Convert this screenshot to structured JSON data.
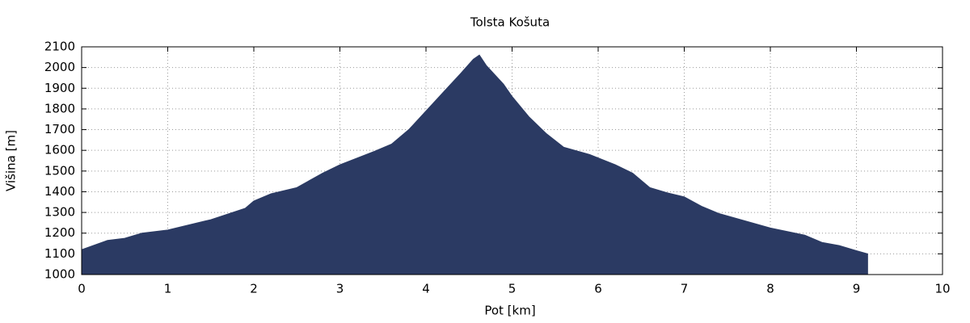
{
  "chart_data": {
    "type": "area",
    "title": "Tolsta Košuta",
    "xlabel": "Pot [km]",
    "ylabel": "Višina [m]",
    "x": [
      0,
      0.3,
      0.5,
      0.7,
      1.0,
      1.5,
      1.9,
      2.0,
      2.2,
      2.5,
      2.8,
      3.0,
      3.4,
      3.6,
      3.8,
      4.0,
      4.2,
      4.4,
      4.55,
      4.62,
      4.7,
      4.9,
      5.0,
      5.2,
      5.4,
      5.6,
      5.9,
      6.2,
      6.4,
      6.6,
      6.8,
      7.0,
      7.2,
      7.4,
      7.7,
      8.0,
      8.4,
      8.6,
      8.8,
      9.0,
      9.13
    ],
    "values": [
      1120,
      1165,
      1175,
      1200,
      1215,
      1265,
      1320,
      1355,
      1390,
      1420,
      1490,
      1530,
      1595,
      1630,
      1700,
      1790,
      1880,
      1970,
      2040,
      2060,
      2010,
      1920,
      1860,
      1760,
      1680,
      1615,
      1580,
      1530,
      1490,
      1420,
      1395,
      1375,
      1330,
      1295,
      1260,
      1225,
      1190,
      1155,
      1140,
      1115,
      1100
    ],
    "color": "#2b3a63",
    "xlim": [
      0,
      10
    ],
    "xticks": [
      0,
      1,
      2,
      3,
      4,
      5,
      6,
      7,
      8,
      9,
      10
    ],
    "ylim": [
      1000,
      2100
    ],
    "yticks": [
      1000,
      1100,
      1200,
      1300,
      1400,
      1500,
      1600,
      1700,
      1800,
      1900,
      2000,
      2100
    ],
    "grid": true
  }
}
